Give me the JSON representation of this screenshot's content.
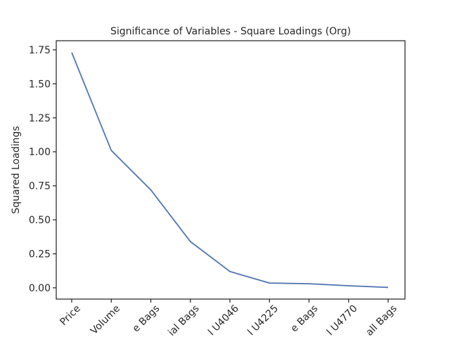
{
  "chart_data": {
    "type": "line",
    "title": "Significance of Variables - Square Loadings (Org)",
    "y_label": "Squared Loadings",
    "categories": [
      "Price",
      "Volume",
      "e Bags",
      "ial Bags",
      "l U4046",
      "l U4225",
      "e Bags",
      "l U4770",
      "all Bags"
    ],
    "series": [
      {
        "name": "Squared Loadings",
        "color": "#4c72b0",
        "values": [
          1.73,
          1.01,
          0.72,
          0.34,
          0.12,
          0.035,
          0.03,
          0.015,
          0.003
        ]
      }
    ],
    "ylim": [
      -0.083,
      1.817
    ],
    "yticks": [
      {
        "value": 0,
        "label": "0.00"
      },
      {
        "value": 0.25,
        "label": "0.25"
      },
      {
        "value": 0.5,
        "label": "0.50"
      },
      {
        "value": 0.75,
        "label": "0.75"
      },
      {
        "value": 1,
        "label": "1.00"
      },
      {
        "value": 1.25,
        "label": "1.25"
      },
      {
        "value": 1.5,
        "label": "1.50"
      },
      {
        "value": 1.75,
        "label": "1.75"
      }
    ]
  }
}
